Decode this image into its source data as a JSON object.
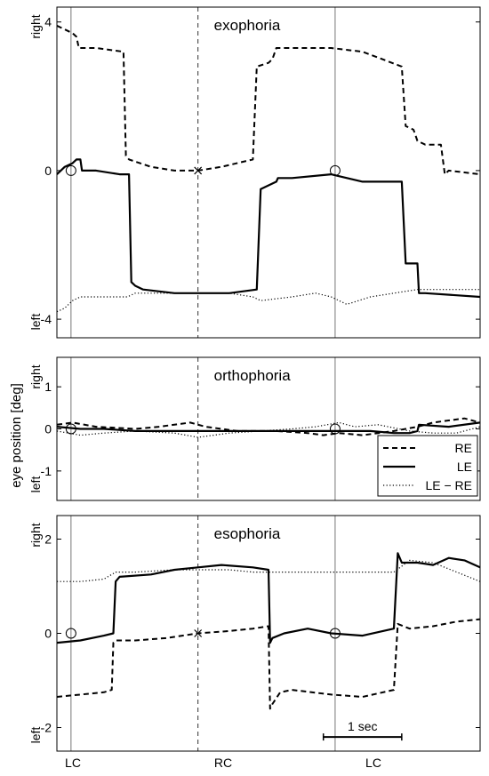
{
  "figure": {
    "ylabel": "eye position [deg]",
    "x_markers": [
      "LC",
      "RC",
      "LC"
    ],
    "scalebar_label": "1 sec"
  },
  "chart_data": [
    {
      "type": "line",
      "title": "exophoria",
      "xlim": [
        0,
        5.4
      ],
      "ylim": [
        -4.5,
        4.4
      ],
      "yticks": [
        4,
        0,
        -4
      ],
      "ytick_labels": [
        "4",
        "0",
        "-4"
      ],
      "side_labels": {
        "top": "right",
        "bottom": "left"
      },
      "vlines": [
        {
          "x": 0.18,
          "style": "solid"
        },
        {
          "x": 1.8,
          "style": "dashed"
        },
        {
          "x": 3.55,
          "style": "solid"
        }
      ],
      "markers": [
        {
          "x": 0.18,
          "y": 0,
          "symbol": "circle"
        },
        {
          "x": 1.8,
          "y": 0,
          "symbol": "cross"
        },
        {
          "x": 3.55,
          "y": 0,
          "symbol": "circle"
        }
      ],
      "series": [
        {
          "name": "RE",
          "style": "dashed",
          "x": [
            0,
            0.1,
            0.2,
            0.25,
            0.28,
            0.5,
            0.85,
            0.88,
            0.92,
            1.2,
            1.5,
            1.8,
            2.1,
            2.5,
            2.55,
            2.7,
            2.75,
            2.8,
            3.0,
            3.5,
            3.9,
            4.4,
            4.45,
            4.55,
            4.6,
            4.7,
            4.9,
            4.95,
            5.0,
            5.4
          ],
          "y": [
            3.9,
            3.8,
            3.7,
            3.6,
            3.3,
            3.3,
            3.2,
            0.4,
            0.3,
            0.1,
            0,
            0,
            0.1,
            0.3,
            2.8,
            2.9,
            3.0,
            3.3,
            3.3,
            3.3,
            3.2,
            2.8,
            1.2,
            1.1,
            0.8,
            0.7,
            0.7,
            -0.1,
            0,
            -0.1
          ]
        },
        {
          "name": "LE",
          "style": "solid",
          "x": [
            0,
            0.05,
            0.1,
            0.2,
            0.25,
            0.3,
            0.32,
            0.5,
            0.8,
            0.92,
            0.95,
            1.0,
            1.1,
            1.5,
            1.8,
            2.2,
            2.55,
            2.6,
            2.8,
            2.82,
            3.0,
            3.5,
            3.9,
            4.3,
            4.4,
            4.45,
            4.6,
            4.62,
            4.7,
            5.4
          ],
          "y": [
            -0.1,
            0,
            0.1,
            0.2,
            0.3,
            0.3,
            0,
            0,
            -0.1,
            -0.1,
            -3.0,
            -3.1,
            -3.2,
            -3.3,
            -3.3,
            -3.3,
            -3.2,
            -0.5,
            -0.3,
            -0.2,
            -0.2,
            -0.1,
            -0.3,
            -0.3,
            -0.3,
            -2.5,
            -2.5,
            -3.3,
            -3.3,
            -3.4
          ]
        },
        {
          "name": "LE − RE",
          "style": "dotted",
          "x": [
            0,
            0.1,
            0.2,
            0.3,
            0.5,
            0.9,
            1.0,
            1.5,
            1.8,
            2.2,
            2.5,
            2.6,
            3.0,
            3.3,
            3.5,
            3.7,
            4.0,
            4.3,
            4.6,
            5.0,
            5.4
          ],
          "y": [
            -3.8,
            -3.7,
            -3.5,
            -3.4,
            -3.4,
            -3.4,
            -3.3,
            -3.3,
            -3.3,
            -3.3,
            -3.4,
            -3.5,
            -3.4,
            -3.3,
            -3.4,
            -3.6,
            -3.4,
            -3.3,
            -3.2,
            -3.2,
            -3.2
          ]
        }
      ]
    },
    {
      "type": "line",
      "title": "orthophoria",
      "xlim": [
        0,
        5.4
      ],
      "ylim": [
        -1.7,
        1.7
      ],
      "yticks": [
        1,
        0,
        -1
      ],
      "ytick_labels": [
        "1",
        "0",
        "-1"
      ],
      "side_labels": {
        "top": "right",
        "bottom": "left"
      },
      "vlines": [
        {
          "x": 0.18,
          "style": "solid"
        },
        {
          "x": 1.8,
          "style": "dashed"
        },
        {
          "x": 3.55,
          "style": "solid"
        }
      ],
      "markers": [
        {
          "x": 0.18,
          "y": 0,
          "symbol": "circle"
        },
        {
          "x": 3.55,
          "y": 0,
          "symbol": "circle"
        }
      ],
      "legend": {
        "position": "bottom-right",
        "entries": [
          "RE",
          "LE",
          "LE − RE"
        ]
      },
      "series": [
        {
          "name": "RE",
          "style": "dashed",
          "x": [
            0,
            0.2,
            0.5,
            1.0,
            1.3,
            1.7,
            1.9,
            2.3,
            2.8,
            3.2,
            3.4,
            3.6,
            3.9,
            4.3,
            4.6,
            4.8,
            5.0,
            5.2,
            5.4
          ],
          "y": [
            0.1,
            0.15,
            0.05,
            0,
            0.05,
            0.15,
            0.05,
            -0.05,
            -0.05,
            -0.1,
            -0.15,
            -0.1,
            -0.15,
            -0.05,
            0.05,
            0.15,
            0.2,
            0.25,
            0.15
          ]
        },
        {
          "name": "LE",
          "style": "solid",
          "x": [
            0,
            0.3,
            0.6,
            1.0,
            1.5,
            2.0,
            2.5,
            3.0,
            3.5,
            4.0,
            4.3,
            4.5,
            4.6,
            4.62,
            5.0,
            5.4
          ],
          "y": [
            0.05,
            0,
            0,
            -0.05,
            -0.05,
            -0.05,
            -0.05,
            -0.05,
            -0.05,
            -0.05,
            -0.1,
            -0.1,
            -0.05,
            0.1,
            0.05,
            0.15
          ]
        },
        {
          "name": "LE − RE",
          "style": "dotted",
          "x": [
            0,
            0.3,
            0.6,
            1.0,
            1.5,
            1.8,
            2.2,
            2.6,
            3.0,
            3.3,
            3.6,
            3.8,
            4.1,
            4.5,
            4.8,
            5.1,
            5.4
          ],
          "y": [
            -0.05,
            -0.15,
            -0.1,
            -0.05,
            -0.1,
            -0.2,
            -0.1,
            -0.05,
            0,
            0.05,
            0.15,
            0.05,
            0.1,
            -0.05,
            -0.1,
            -0.1,
            0.05
          ]
        }
      ]
    },
    {
      "type": "line",
      "title": "esophoria",
      "xlim": [
        0,
        5.4
      ],
      "ylim": [
        -2.5,
        2.5
      ],
      "yticks": [
        2,
        0,
        -2
      ],
      "ytick_labels": [
        "2",
        "0",
        "-2"
      ],
      "side_labels": {
        "top": "right",
        "bottom": "left"
      },
      "vlines": [
        {
          "x": 0.18,
          "style": "solid"
        },
        {
          "x": 1.8,
          "style": "dashed"
        },
        {
          "x": 3.55,
          "style": "solid"
        }
      ],
      "markers": [
        {
          "x": 0.18,
          "y": 0,
          "symbol": "circle"
        },
        {
          "x": 1.8,
          "y": 0,
          "symbol": "cross"
        },
        {
          "x": 3.55,
          "y": 0,
          "symbol": "circle"
        }
      ],
      "scalebar": {
        "x_start": 3.4,
        "x_end": 4.4,
        "y": -2.2,
        "label": "1 sec"
      },
      "series": [
        {
          "name": "RE",
          "style": "dashed",
          "x": [
            0,
            0.3,
            0.6,
            0.7,
            0.72,
            0.75,
            1.0,
            1.4,
            1.8,
            2.2,
            2.5,
            2.7,
            2.72,
            2.75,
            2.85,
            3.0,
            3.5,
            3.9,
            4.3,
            4.35,
            4.5,
            4.8,
            5.1,
            5.4
          ],
          "y": [
            -1.35,
            -1.3,
            -1.25,
            -1.2,
            -0.2,
            -0.15,
            -0.15,
            -0.1,
            0,
            0.05,
            0.1,
            0.15,
            -1.6,
            -1.5,
            -1.25,
            -1.2,
            -1.3,
            -1.35,
            -1.2,
            0.2,
            0.1,
            0.15,
            0.25,
            0.3
          ]
        },
        {
          "name": "LE",
          "style": "solid",
          "x": [
            0,
            0.3,
            0.6,
            0.72,
            0.75,
            0.8,
            1.2,
            1.5,
            1.8,
            2.1,
            2.5,
            2.7,
            2.72,
            2.75,
            2.9,
            3.2,
            3.5,
            3.9,
            4.3,
            4.35,
            4.4,
            4.6,
            4.8,
            5.0,
            5.2,
            5.4
          ],
          "y": [
            -0.2,
            -0.15,
            -0.05,
            0,
            1.1,
            1.2,
            1.25,
            1.35,
            1.4,
            1.45,
            1.4,
            1.35,
            -0.2,
            -0.1,
            0,
            0.1,
            0,
            -0.05,
            0.1,
            1.7,
            1.5,
            1.5,
            1.45,
            1.6,
            1.55,
            1.4
          ]
        },
        {
          "name": "LE − RE",
          "style": "dotted",
          "x": [
            0,
            0.3,
            0.6,
            0.75,
            1.0,
            1.5,
            1.8,
            2.2,
            2.5,
            2.8,
            3.2,
            3.5,
            3.9,
            4.3,
            4.5,
            4.8,
            5.1,
            5.4
          ],
          "y": [
            1.1,
            1.1,
            1.15,
            1.3,
            1.3,
            1.35,
            1.35,
            1.35,
            1.3,
            1.3,
            1.3,
            1.3,
            1.3,
            1.3,
            1.55,
            1.5,
            1.3,
            1.1
          ]
        }
      ]
    }
  ]
}
